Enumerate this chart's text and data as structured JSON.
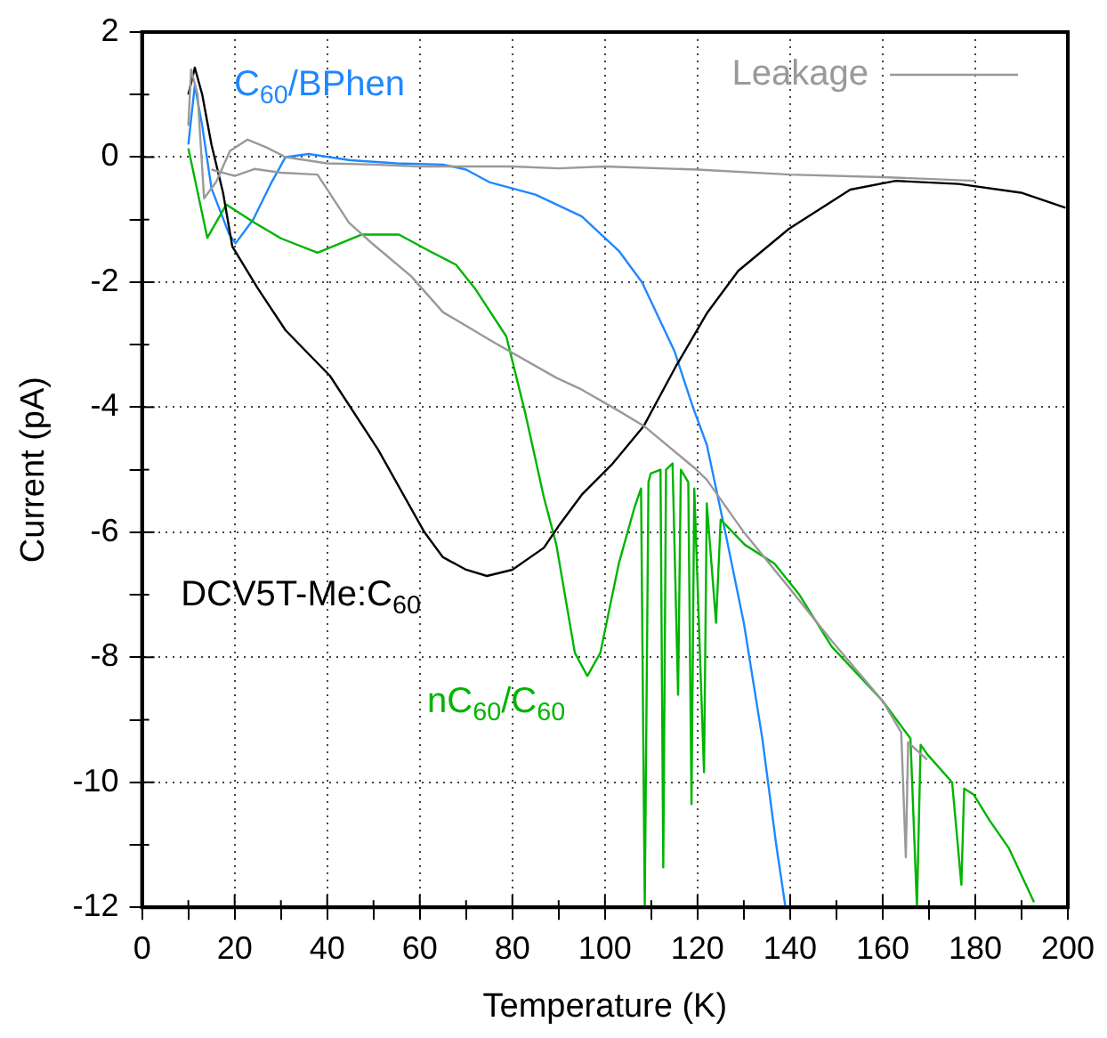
{
  "chart_data": {
    "type": "line",
    "xlabel": "Temperature (K)",
    "ylabel": "Current (pA)",
    "xlim": [
      0,
      200
    ],
    "ylim": [
      -12,
      2
    ],
    "xticks": [
      0,
      {
        "value": 10,
        "label": null
      },
      20,
      {
        "value": 30,
        "label": null
      },
      40,
      {
        "value": 50,
        "label": null
      },
      60,
      {
        "value": 70,
        "label": null
      },
      80,
      {
        "value": 90,
        "label": null
      },
      100,
      {
        "value": 110,
        "label": null
      },
      120,
      {
        "value": 130,
        "label": null
      },
      140,
      {
        "value": 150,
        "label": null
      },
      160,
      {
        "value": 170,
        "label": null
      },
      180,
      {
        "value": 190,
        "label": null
      },
      200
    ],
    "yticks": [
      -12,
      {
        "value": -11,
        "label": null
      },
      -10,
      {
        "value": -9,
        "label": null
      },
      -8,
      {
        "value": -7,
        "label": null
      },
      -6,
      {
        "value": -5,
        "label": null
      },
      -4,
      {
        "value": -3,
        "label": null
      },
      -2,
      {
        "value": -1,
        "label": null
      },
      0,
      {
        "value": 1,
        "label": null
      },
      2
    ],
    "grid": true,
    "legend": "top right",
    "marker": "none",
    "line_style": "solid",
    "series": [
      {
        "name": "Leakage",
        "color": "#999999",
        "x": [
          10,
          10.6,
          12,
          13.4,
          16,
          19,
          22.8,
          27,
          31,
          40,
          50,
          60,
          70,
          80,
          90,
          100,
          120,
          140,
          160,
          180
        ],
        "values": [
          0.5,
          1.4,
          1.0,
          -0.66,
          -0.4,
          0.1,
          0.28,
          0.15,
          0,
          -0.1,
          -0.12,
          -0.15,
          -0.15,
          -0.15,
          -0.18,
          -0.15,
          -0.2,
          -0.28,
          -0.32,
          -0.38
        ]
      },
      {
        "color": "#999999",
        "x": [
          15,
          20,
          24.3,
          30,
          37.9,
          44.7,
          50,
          58.2,
          65,
          75.9,
          89.5,
          95,
          103,
          108.4,
          119.3,
          122,
          130,
          139.7,
          149,
          160,
          164,
          165,
          165.5,
          169.6
        ],
        "values": [
          -0.2,
          -0.3,
          -0.19,
          -0.25,
          -0.28,
          -1.05,
          -1.4,
          -1.91,
          -2.48,
          -2.96,
          -3.53,
          -3.72,
          -4.06,
          -4.3,
          -4.97,
          -5.16,
          -6.0,
          -6.88,
          -7.74,
          -8.7,
          -9.2,
          -11.2,
          -9.36,
          -9.64
        ]
      },
      {
        "name": "DCV5T-Me:C$_{60}$",
        "color": "#000000",
        "x": [
          10,
          11.4,
          13,
          15,
          17.5,
          19.5,
          25,
          31,
          40.6,
          51,
          61,
          65,
          70,
          74.5,
          80,
          86.8,
          90,
          95,
          101.7,
          108.4,
          115.3,
          122,
          128.8,
          139.7,
          153,
          162.8,
          176.4,
          189.9,
          199.5
        ],
        "values": [
          1.0,
          1.43,
          1.0,
          0.2,
          -0.57,
          -1.43,
          -2.1,
          -2.77,
          -3.5,
          -4.68,
          -6.0,
          -6.4,
          -6.6,
          -6.7,
          -6.6,
          -6.25,
          -5.9,
          -5.4,
          -4.9,
          -4.3,
          -3.35,
          -2.5,
          -1.82,
          -1.15,
          -0.52,
          -0.38,
          -0.43,
          -0.57,
          -0.81
        ]
      },
      {
        "name": "nC$_{60}$/C$_{60}$",
        "color": "#00b400",
        "x": [
          10,
          14.1,
          18.2,
          24.3,
          30,
          37.9,
          47.4,
          55.5,
          62,
          67.8,
          71.9,
          78.7,
          82.8,
          86.8,
          89.5,
          93.5,
          96.2,
          99,
          103,
          106.4,
          107.8,
          108.6,
          109.4,
          109.9,
          112,
          112.6,
          113.2,
          114.6,
          115.8,
          116.4,
          118,
          118.7,
          119.3,
          121.4,
          122,
          124,
          125,
          130.2,
          136.6,
          142,
          149,
          160,
          166,
          167.4,
          168.2,
          169.6,
          175,
          177,
          177.6,
          179.7,
          183,
          187.3,
          192.7
        ],
        "values": [
          0.14,
          -1.29,
          -0.76,
          -1.05,
          -1.3,
          -1.53,
          -1.24,
          -1.24,
          -1.5,
          -1.72,
          -2.1,
          -2.87,
          -4.1,
          -5.44,
          -6.2,
          -7.93,
          -8.3,
          -7.93,
          -6.5,
          -5.6,
          -5.3,
          -12,
          -5.2,
          -5.06,
          -5,
          -11.36,
          -5,
          -4.9,
          -8.6,
          -5,
          -5.2,
          -10.35,
          -5.3,
          -9.84,
          -5.54,
          -7.45,
          -5.8,
          -6.2,
          -6.5,
          -7.0,
          -7.83,
          -8.7,
          -9.3,
          -12,
          -9.4,
          -9.55,
          -10,
          -11.64,
          -10.1,
          -10.2,
          -10.6,
          -11.06,
          -11.92
        ]
      },
      {
        "name": "C$_{60}$/BPhen",
        "color": "#1e88ff",
        "x": [
          10,
          11.4,
          13,
          15,
          18.8,
          20.2,
          24,
          28,
          31,
          36,
          45,
          55,
          65,
          70,
          75,
          85,
          95,
          103,
          108,
          115,
          119,
          122,
          126,
          130,
          134,
          137,
          139
        ],
        "values": [
          0.2,
          1.15,
          0.5,
          -0.5,
          -1.23,
          -1.38,
          -1.0,
          -0.4,
          0,
          0.05,
          -0.05,
          -0.1,
          -0.12,
          -0.2,
          -0.4,
          -0.6,
          -0.95,
          -1.5,
          -2.0,
          -3.1,
          -4.0,
          -4.6,
          -6.0,
          -7.45,
          -9.3,
          -11,
          -12
        ]
      }
    ]
  }
}
